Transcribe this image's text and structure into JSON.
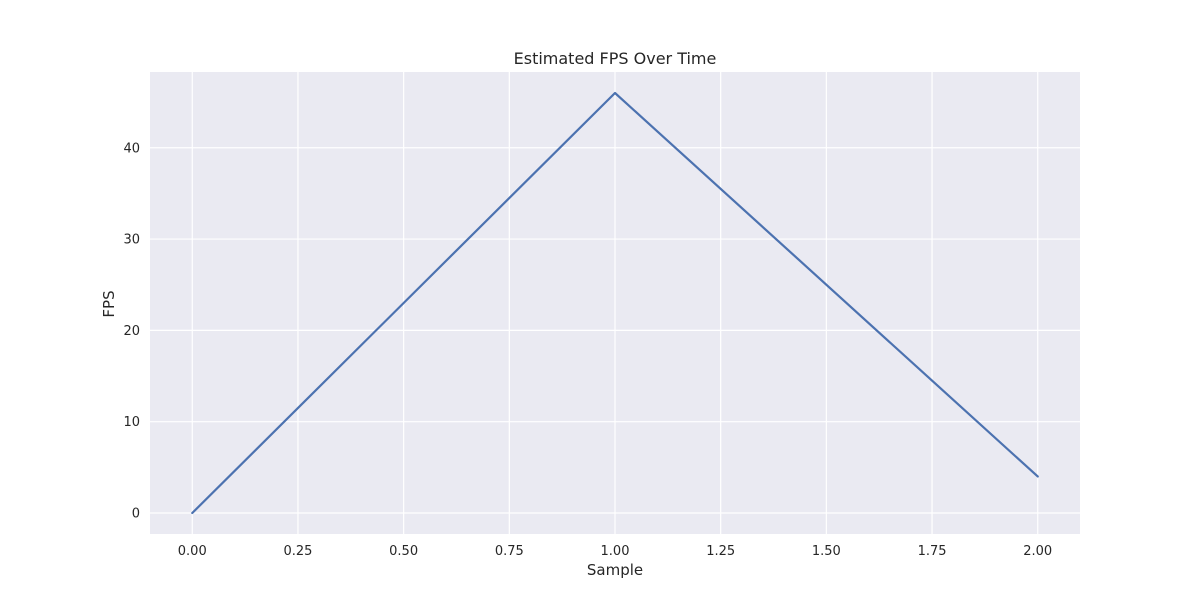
{
  "chart_data": {
    "type": "line",
    "title": "Estimated FPS Over Time",
    "xlabel": "Sample",
    "ylabel": "FPS",
    "xlim": [
      -0.1,
      2.1
    ],
    "ylim": [
      -2.3,
      48.3
    ],
    "xticks": [
      0,
      0.25,
      0.5,
      0.75,
      1,
      1.25,
      1.5,
      1.75,
      2
    ],
    "xtick_labels": [
      "0.00",
      "0.25",
      "0.50",
      "0.75",
      "1.00",
      "1.25",
      "1.50",
      "1.75",
      "2.00"
    ],
    "yticks": [
      0,
      10,
      20,
      30,
      40
    ],
    "ytick_labels": [
      "0",
      "10",
      "20",
      "30",
      "40"
    ],
    "grid": true,
    "series": [
      {
        "x": [
          0,
          1,
          2
        ],
        "values": [
          0,
          46,
          4
        ],
        "color": "#4c72b0"
      }
    ]
  }
}
